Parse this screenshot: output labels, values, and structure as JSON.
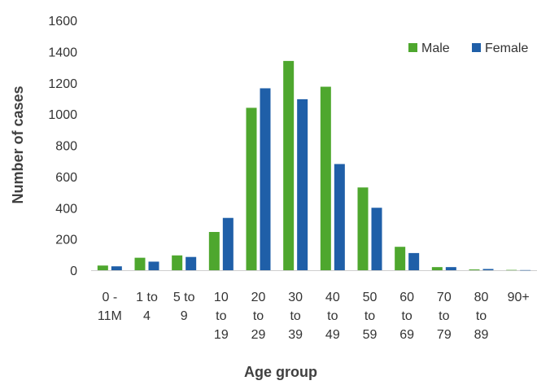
{
  "chart_data": {
    "type": "bar",
    "xlabel": "Age group",
    "ylabel": "Number of cases",
    "ylim": [
      0,
      1600
    ],
    "yticks": [
      0,
      200,
      400,
      600,
      800,
      1000,
      1200,
      1400,
      1600
    ],
    "grid": false,
    "legend_position": "top-right",
    "categories": [
      [
        "0 -",
        "11M"
      ],
      [
        "1 to",
        "4"
      ],
      [
        "5 to",
        "9"
      ],
      [
        "10",
        "to",
        "19"
      ],
      [
        "20",
        "to",
        "29"
      ],
      [
        "30",
        "to",
        "39"
      ],
      [
        "40",
        "to",
        "49"
      ],
      [
        "50",
        "to",
        "59"
      ],
      [
        "60",
        "to",
        "69"
      ],
      [
        "70",
        "to",
        "79"
      ],
      [
        "80",
        "to",
        "89"
      ],
      [
        "90+"
      ]
    ],
    "series": [
      {
        "name": "Male",
        "color": "#4ea72e",
        "values": [
          30,
          80,
          95,
          245,
          1040,
          1340,
          1175,
          530,
          150,
          20,
          5,
          2
        ]
      },
      {
        "name": "Female",
        "color": "#1f5fa8",
        "values": [
          25,
          55,
          85,
          335,
          1165,
          1095,
          680,
          400,
          110,
          20,
          8,
          1
        ]
      }
    ]
  }
}
